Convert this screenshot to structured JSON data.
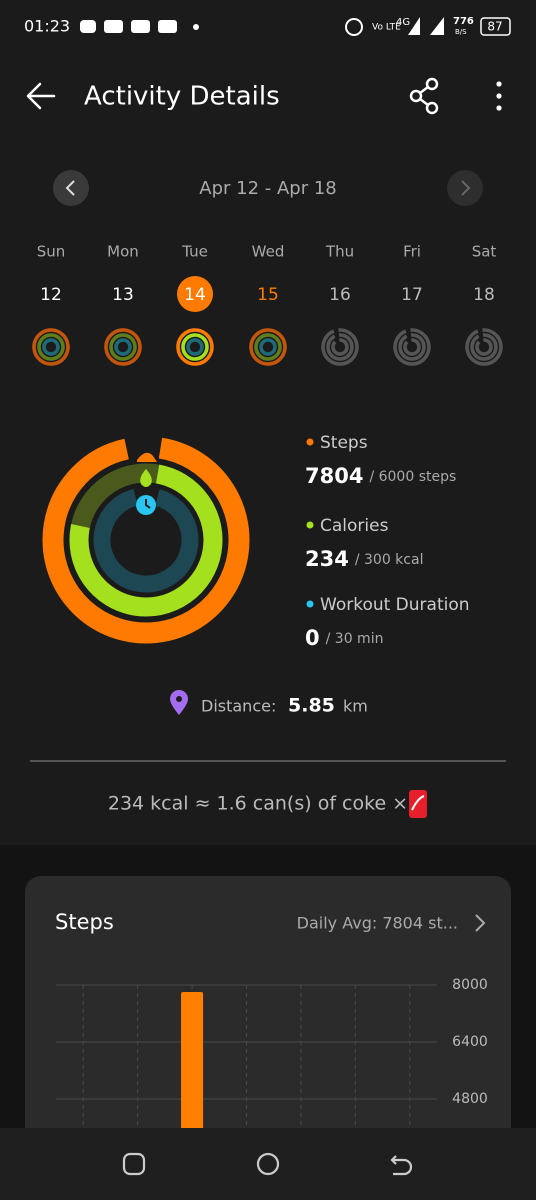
{
  "status_bar": {
    "time": "01:23",
    "network": "Vo LTE",
    "network_type": "4G",
    "speed": "776",
    "speed_unit": "B/S",
    "battery": "87"
  },
  "header": {
    "title": "Activity Details"
  },
  "week": {
    "range": "Apr 12 - Apr 18",
    "days": [
      {
        "name": "Sun",
        "date": "12"
      },
      {
        "name": "Mon",
        "date": "13"
      },
      {
        "name": "Tue",
        "date": "14"
      },
      {
        "name": "Wed",
        "date": "15"
      },
      {
        "name": "Thu",
        "date": "16"
      },
      {
        "name": "Fri",
        "date": "17"
      },
      {
        "name": "Sat",
        "date": "18"
      }
    ]
  },
  "summary": {
    "items": [
      {
        "label": "Steps",
        "value": "7804",
        "goal": "/ 6000 steps"
      },
      {
        "label": "Calories",
        "value": "234",
        "goal": "/ 300 kcal"
      },
      {
        "label": "Workout Duration",
        "value": "0",
        "goal": "/ 30 min"
      }
    ]
  },
  "distance": {
    "label": "Distance:",
    "value": "5.85",
    "unit": "km"
  },
  "equivalence": "234 kcal ≈ 1.6 can(s) of coke ×",
  "steps_card": {
    "title": "Steps",
    "daily_avg": "Daily Avg: 7804  st...",
    "chart": {
      "yticks": [
        8000,
        6400,
        4800
      ],
      "values": [
        null,
        null,
        7804,
        null,
        null,
        null,
        null
      ]
    }
  }
}
